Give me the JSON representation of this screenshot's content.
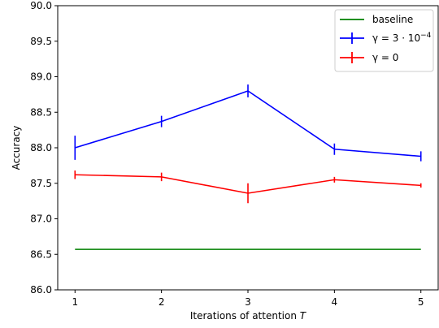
{
  "chart_data": {
    "type": "line",
    "xlabel": "Iterations of attention",
    "xlabel_var": "T",
    "ylabel": "Accuracy",
    "x": [
      1,
      2,
      3,
      4,
      5
    ],
    "xlim": [
      0.8,
      5.2
    ],
    "ylim": [
      86.0,
      90.0
    ],
    "x_ticks": [
      "1",
      "2",
      "3",
      "4",
      "5"
    ],
    "y_ticks": [
      "86.0",
      "86.5",
      "87.0",
      "87.5",
      "88.0",
      "88.5",
      "89.0",
      "89.5",
      "90.0"
    ],
    "grid": false,
    "legend_position": "top-right",
    "series": [
      {
        "name": "baseline",
        "color": "#008000",
        "values": [
          86.57,
          86.57,
          86.57,
          86.57,
          86.57
        ],
        "errors": null
      },
      {
        "name": "γ = 3 · 10^-4",
        "legend_main": "γ = 3 · 10",
        "legend_exp": "−4",
        "color": "#0000ff",
        "values": [
          88.0,
          88.37,
          88.8,
          87.98,
          87.88
        ],
        "errors": [
          0.17,
          0.08,
          0.09,
          0.08,
          0.07
        ]
      },
      {
        "name": "γ = 0",
        "legend_main": "γ = 0",
        "color": "#ff0000",
        "values": [
          87.62,
          87.59,
          87.36,
          87.55,
          87.47
        ],
        "errors": [
          0.06,
          0.06,
          0.14,
          0.04,
          0.03
        ]
      }
    ]
  }
}
